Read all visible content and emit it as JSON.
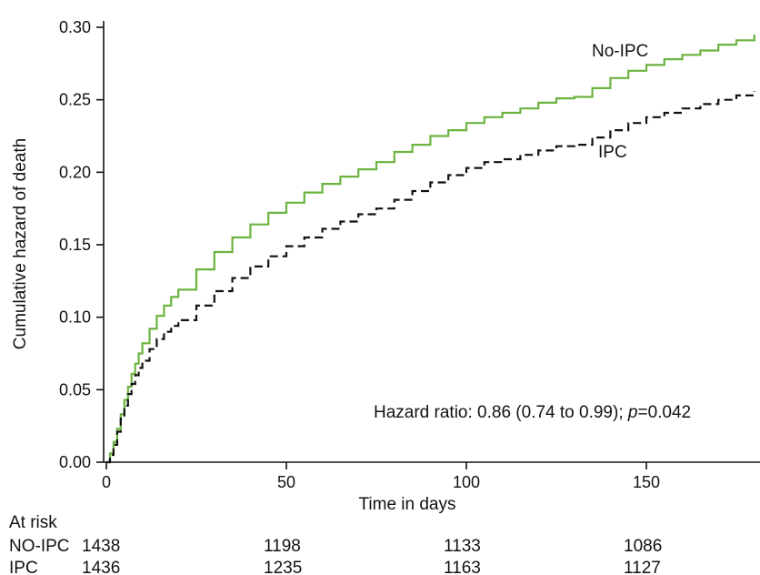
{
  "chart_data": {
    "type": "line",
    "xlabel": "Time in days",
    "ylabel": "Cumulative hazard of death",
    "xlim": [
      0,
      180
    ],
    "ylim": [
      0,
      0.3
    ],
    "x_ticks": [
      "0",
      "50",
      "100",
      "150"
    ],
    "y_ticks": [
      "0.00",
      "0.05",
      "0.10",
      "0.15",
      "0.20",
      "0.25",
      "0.30"
    ],
    "grid": false,
    "legend": "none",
    "series": [
      {
        "name": "No-IPC",
        "color": "#6cb33f",
        "style": "solid step",
        "x": [
          0,
          1,
          2,
          3,
          4,
          5,
          6,
          7,
          8,
          9,
          10,
          12,
          14,
          16,
          18,
          20,
          25,
          30,
          35,
          40,
          45,
          50,
          55,
          60,
          65,
          70,
          75,
          80,
          85,
          90,
          95,
          100,
          105,
          110,
          115,
          120,
          125,
          130,
          135,
          140,
          145,
          150,
          155,
          160,
          165,
          170,
          175,
          180
        ],
        "values": [
          0.0,
          0.006,
          0.014,
          0.023,
          0.033,
          0.043,
          0.052,
          0.061,
          0.068,
          0.075,
          0.082,
          0.092,
          0.101,
          0.108,
          0.114,
          0.119,
          0.133,
          0.145,
          0.155,
          0.164,
          0.172,
          0.179,
          0.186,
          0.192,
          0.197,
          0.202,
          0.207,
          0.214,
          0.219,
          0.225,
          0.229,
          0.234,
          0.238,
          0.241,
          0.244,
          0.248,
          0.251,
          0.252,
          0.258,
          0.265,
          0.27,
          0.274,
          0.278,
          0.281,
          0.284,
          0.288,
          0.291,
          0.295
        ]
      },
      {
        "name": "IPC",
        "color": "#111111",
        "style": "dashed step",
        "x": [
          0,
          1,
          2,
          3,
          4,
          5,
          6,
          7,
          8,
          9,
          10,
          12,
          14,
          16,
          18,
          20,
          25,
          30,
          35,
          40,
          45,
          50,
          55,
          60,
          65,
          70,
          75,
          80,
          85,
          90,
          95,
          100,
          105,
          110,
          115,
          120,
          125,
          130,
          135,
          140,
          145,
          150,
          155,
          160,
          165,
          170,
          175,
          180
        ],
        "values": [
          0.0,
          0.005,
          0.012,
          0.021,
          0.03,
          0.039,
          0.047,
          0.054,
          0.06,
          0.065,
          0.07,
          0.078,
          0.085,
          0.09,
          0.094,
          0.098,
          0.108,
          0.118,
          0.127,
          0.135,
          0.142,
          0.149,
          0.155,
          0.161,
          0.166,
          0.171,
          0.175,
          0.181,
          0.187,
          0.193,
          0.198,
          0.203,
          0.207,
          0.209,
          0.212,
          0.215,
          0.218,
          0.219,
          0.224,
          0.229,
          0.234,
          0.238,
          0.241,
          0.244,
          0.247,
          0.25,
          0.253,
          0.256
        ]
      }
    ],
    "annotations": [
      {
        "text": "No-IPC"
      },
      {
        "text": "IPC"
      }
    ],
    "hazard_ratio": {
      "prefix": "Hazard ratio: 0.86 (0.74 to 0.99); ",
      "p": "p",
      "suffix": "=0.042"
    },
    "at_risk": {
      "title": "At risk",
      "rows": [
        {
          "label": "NO-IPC",
          "values": [
            "1438",
            "1198",
            "1133",
            "1086"
          ]
        },
        {
          "label": "IPC",
          "values": [
            "1436",
            "1235",
            "1163",
            "1127"
          ]
        }
      ]
    }
  }
}
